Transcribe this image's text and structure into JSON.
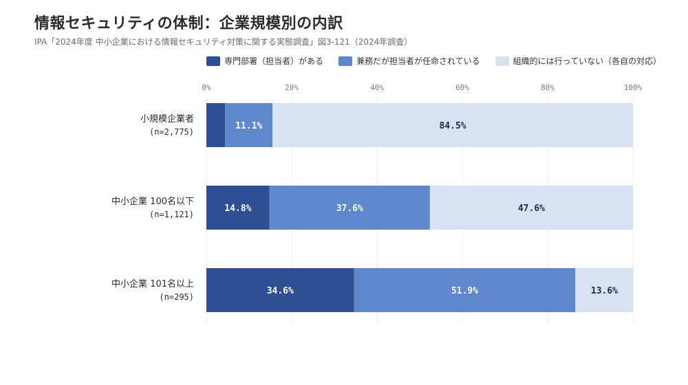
{
  "title": "情報セキュリティの体制：企業規模別の内訳",
  "subtitle": "IPA「2024年度 中小企業における情報セキュリティ対策に関する実態調査」図3-121（2024年調査）",
  "chart_data": {
    "type": "bar",
    "orientation": "horizontal",
    "stacked": true,
    "unit": "%",
    "xlim": [
      0,
      100
    ],
    "ticks": [
      "0%",
      "20%",
      "40%",
      "60%",
      "80%",
      "100%"
    ],
    "tick_values": [
      0,
      20,
      40,
      60,
      80,
      100
    ],
    "grid": true,
    "legend_position": "top",
    "categories": [
      {
        "name": "小規模企業者",
        "n": "(n=2,775)"
      },
      {
        "name": "中小企業 100名以下",
        "n": "(n=1,121)"
      },
      {
        "name": "中小企業 101名以上",
        "n": "(n=295)"
      }
    ],
    "series": [
      {
        "name": "専門部署（担当者）がある",
        "color": "#2e4f92",
        "label_color": "#ffffff",
        "values": [
          4.4,
          14.8,
          34.6
        ],
        "labels": [
          "",
          "14.8%",
          "34.6%"
        ]
      },
      {
        "name": "兼務だが担当者が任命されている",
        "color": "#5f87cb",
        "label_color": "#ffffff",
        "values": [
          11.1,
          37.6,
          51.9
        ],
        "labels": [
          "11.1%",
          "37.6%",
          "51.9%"
        ]
      },
      {
        "name": "組織的には行っていない（各自の対応）",
        "color": "#d9e2f1",
        "label_color": "#1f2a44",
        "values": [
          84.5,
          47.6,
          13.6
        ],
        "labels": [
          "84.5%",
          "47.6%",
          "13.6%"
        ]
      }
    ]
  }
}
